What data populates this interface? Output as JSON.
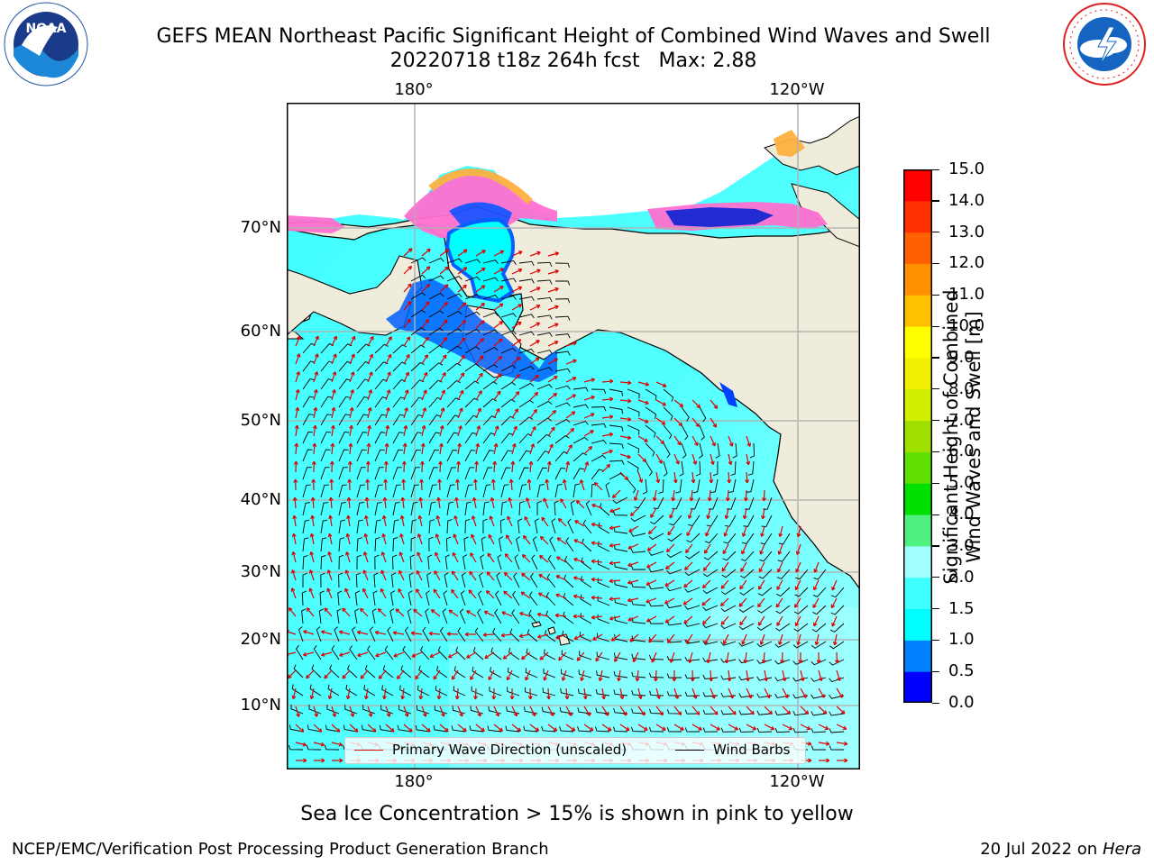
{
  "header": {
    "title_line1": "GEFS MEAN Northeast Pacific Significant Height of Combined Wind Waves and Swell",
    "title_line2": "20220718 t18z 264h fcst   Max: 2.88"
  },
  "logos": {
    "left": {
      "name": "noaa-logo-icon",
      "text": "NOAA",
      "ring_text": "NATIONAL OCEANIC AND ATMOSPHERIC ADMINISTRATION · U.S. DEPARTMENT OF COMMERCE"
    },
    "right": {
      "name": "nws-logo-icon",
      "ring_text": "NATIONAL WEATHER SERVICE"
    }
  },
  "map": {
    "lon_labels_top": [
      "180°",
      "120°W"
    ],
    "lon_labels_bottom": [
      "180°",
      "120°W"
    ],
    "lat_labels": [
      "70°N",
      "60°N",
      "50°N",
      "40°N",
      "30°N",
      "20°N",
      "10°N"
    ],
    "colors": {
      "land": "#efecdb",
      "coast": "#000000",
      "grid": "#b0b0b0",
      "wave_arrow": "#e00000",
      "wind_barb": "#000000"
    }
  },
  "legend": {
    "wave_label": "Primary Wave Direction (unscaled)",
    "wind_label": "Wind Barbs"
  },
  "colorbar": {
    "title_line1": "Significant Height of Combined",
    "title_line2": "Wind Waves and Swell [m]",
    "ticks": [
      "0.0",
      "0.5",
      "1.0",
      "1.5",
      "2.0",
      "3.0",
      "4.0",
      "5.0",
      "6.0",
      "7.0",
      "8.0",
      "9.0",
      "10.0",
      "11.0",
      "12.0",
      "13.0",
      "14.0",
      "15.0"
    ],
    "colors": [
      "#0000ff",
      "#0080ff",
      "#00ffff",
      "#40ffff",
      "#a0ffff",
      "#50f080",
      "#00e000",
      "#60e000",
      "#a0e000",
      "#d0f000",
      "#f0f000",
      "#ffff00",
      "#ffc000",
      "#ff9000",
      "#ff6000",
      "#ff3000",
      "#ff0000"
    ]
  },
  "caption": "Sea Ice Concentration > 15% is shown in pink to yellow",
  "footer": {
    "left": "NCEP/EMC/Verification Post Processing Product Generation Branch",
    "right_date": "20 Jul 2022 on",
    "right_host": "Hera"
  }
}
